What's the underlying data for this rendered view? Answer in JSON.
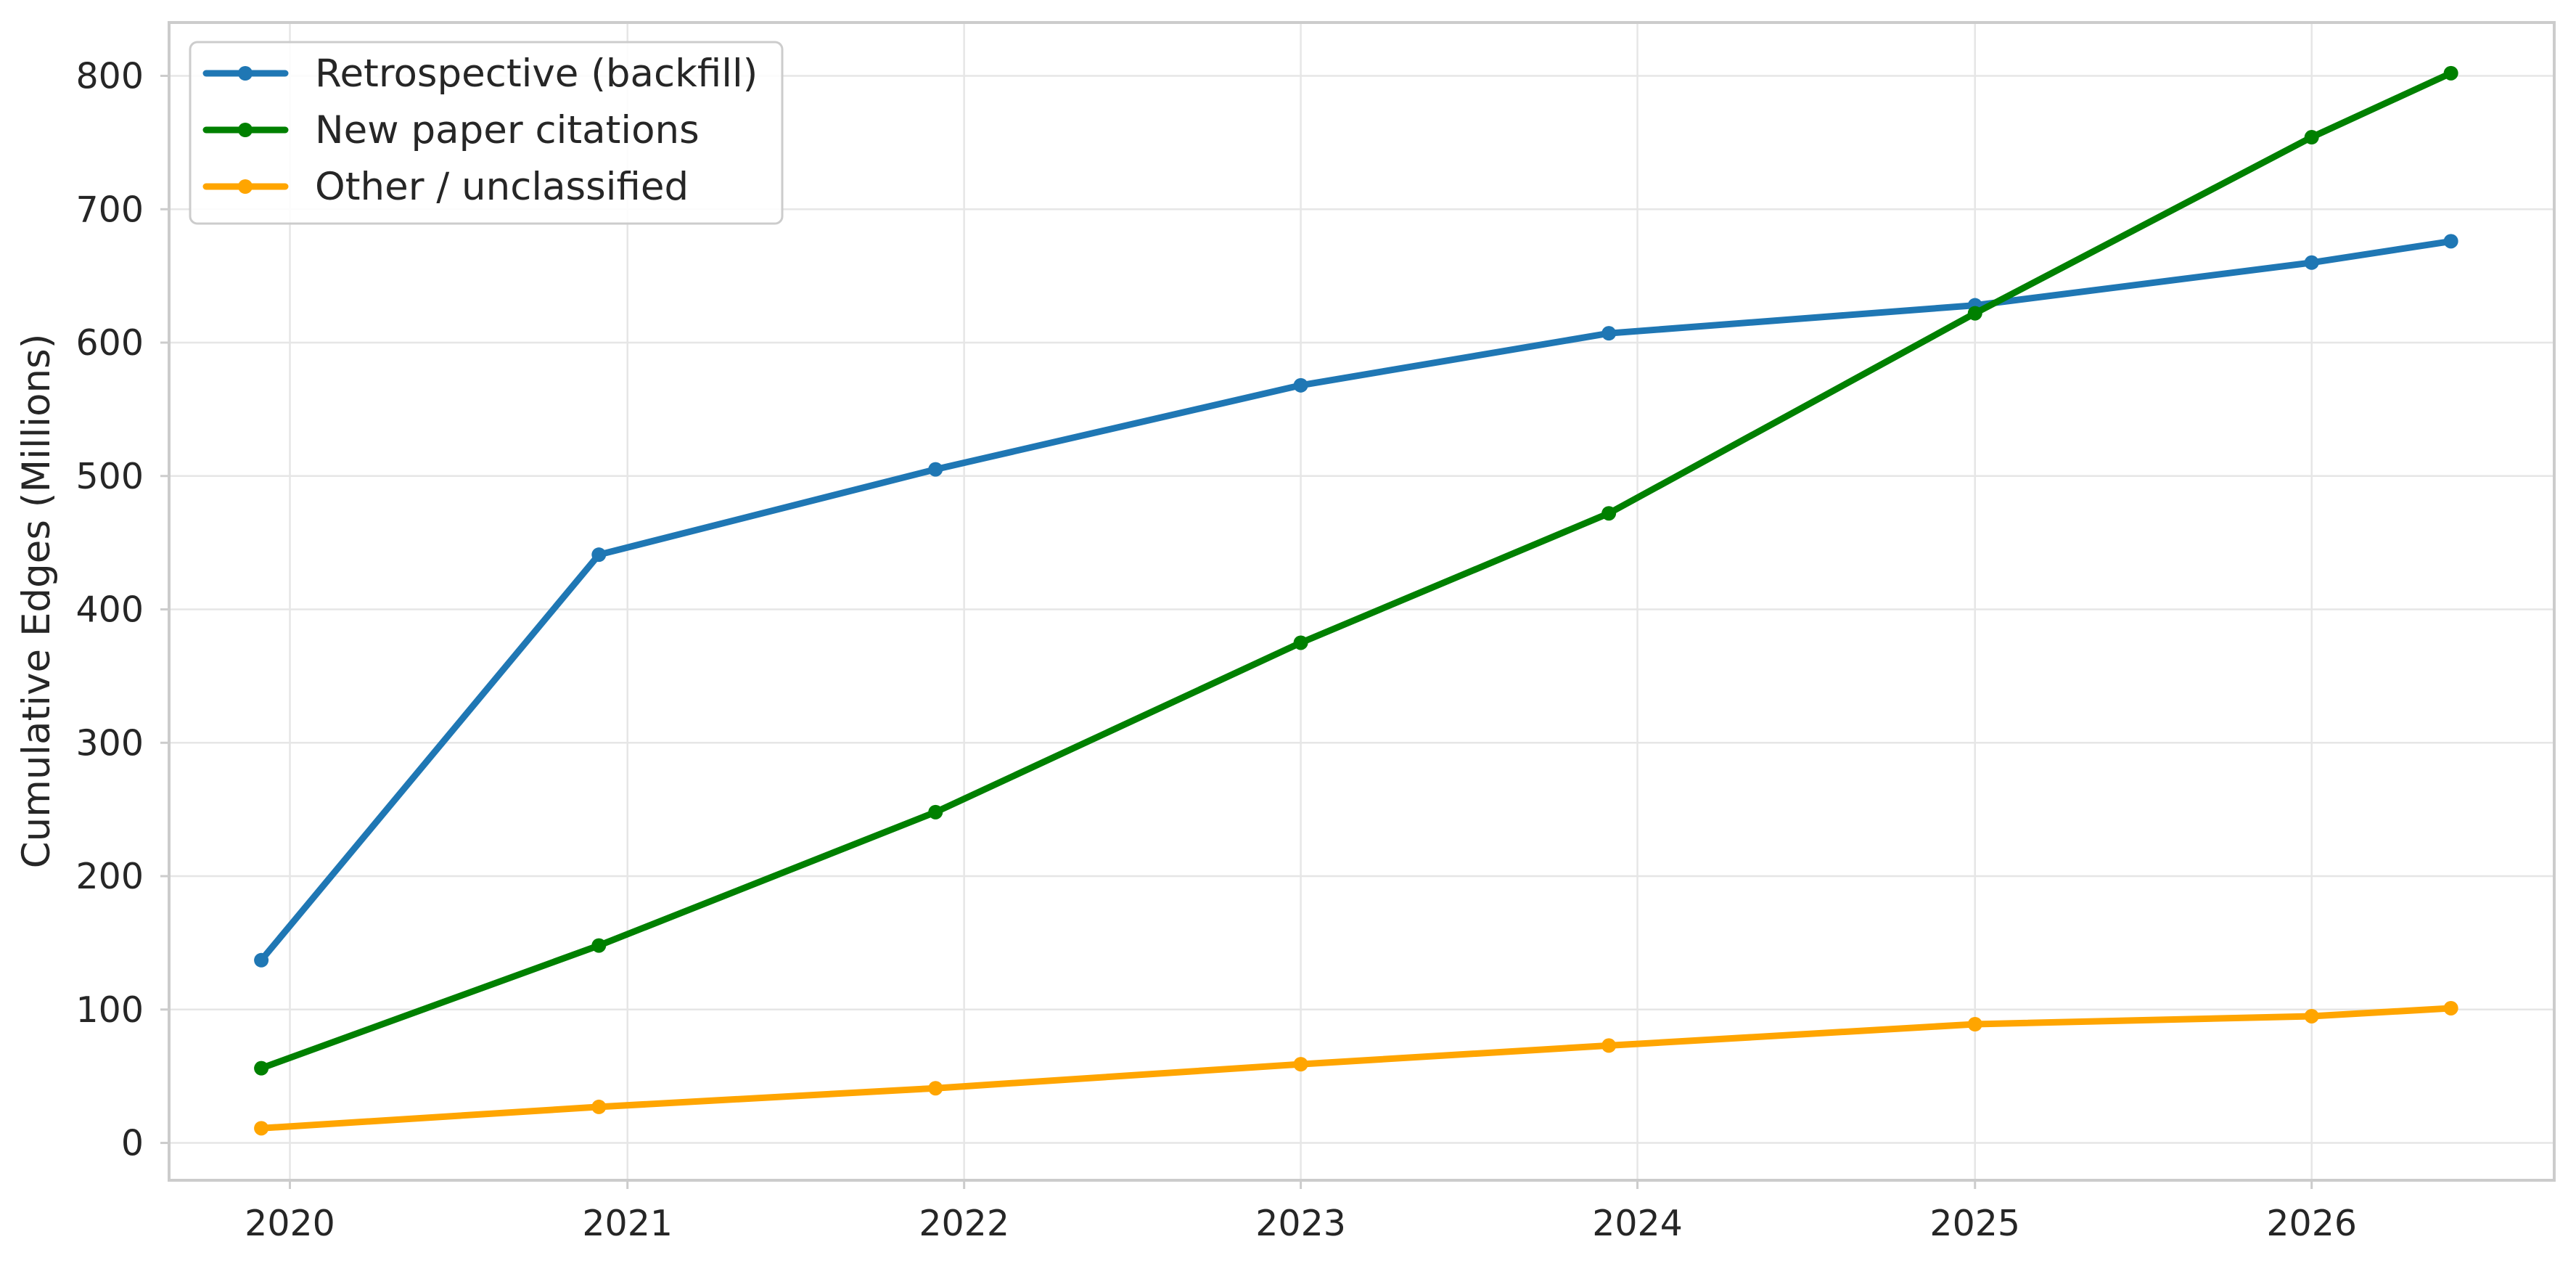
{
  "chart_data": {
    "type": "line",
    "title": "",
    "xlabel": "",
    "ylabel": "Cumulative Edges (Millions)",
    "x_ticks": [
      "2020",
      "2021",
      "2022",
      "2023",
      "2024",
      "2025",
      "2026"
    ],
    "y_ticks": [
      "0",
      "100",
      "200",
      "300",
      "400",
      "500",
      "600",
      "700",
      "800"
    ],
    "xlim": [
      "2019-08-23",
      "2026-09-21"
    ],
    "ylim": [
      -28,
      840
    ],
    "grid": true,
    "legend_position": "top-left",
    "x": [
      "2019-12-01",
      "2020-12-01",
      "2021-12-01",
      "2023-01-01",
      "2023-12-01",
      "2025-01-01",
      "2026-01-01",
      "2026-06-01"
    ],
    "series": [
      {
        "name": "Retrospective (backfill)",
        "color": "#1f77b4",
        "values": [
          137,
          441,
          505,
          568,
          607,
          628,
          660,
          676
        ]
      },
      {
        "name": "New paper citations",
        "color": "#008000",
        "values": [
          56,
          148,
          248,
          375,
          472,
          622,
          754,
          802
        ]
      },
      {
        "name": "Other / unclassified",
        "color": "#ffa500",
        "values": [
          11,
          27,
          41,
          59,
          73,
          89,
          95,
          101
        ]
      }
    ]
  }
}
